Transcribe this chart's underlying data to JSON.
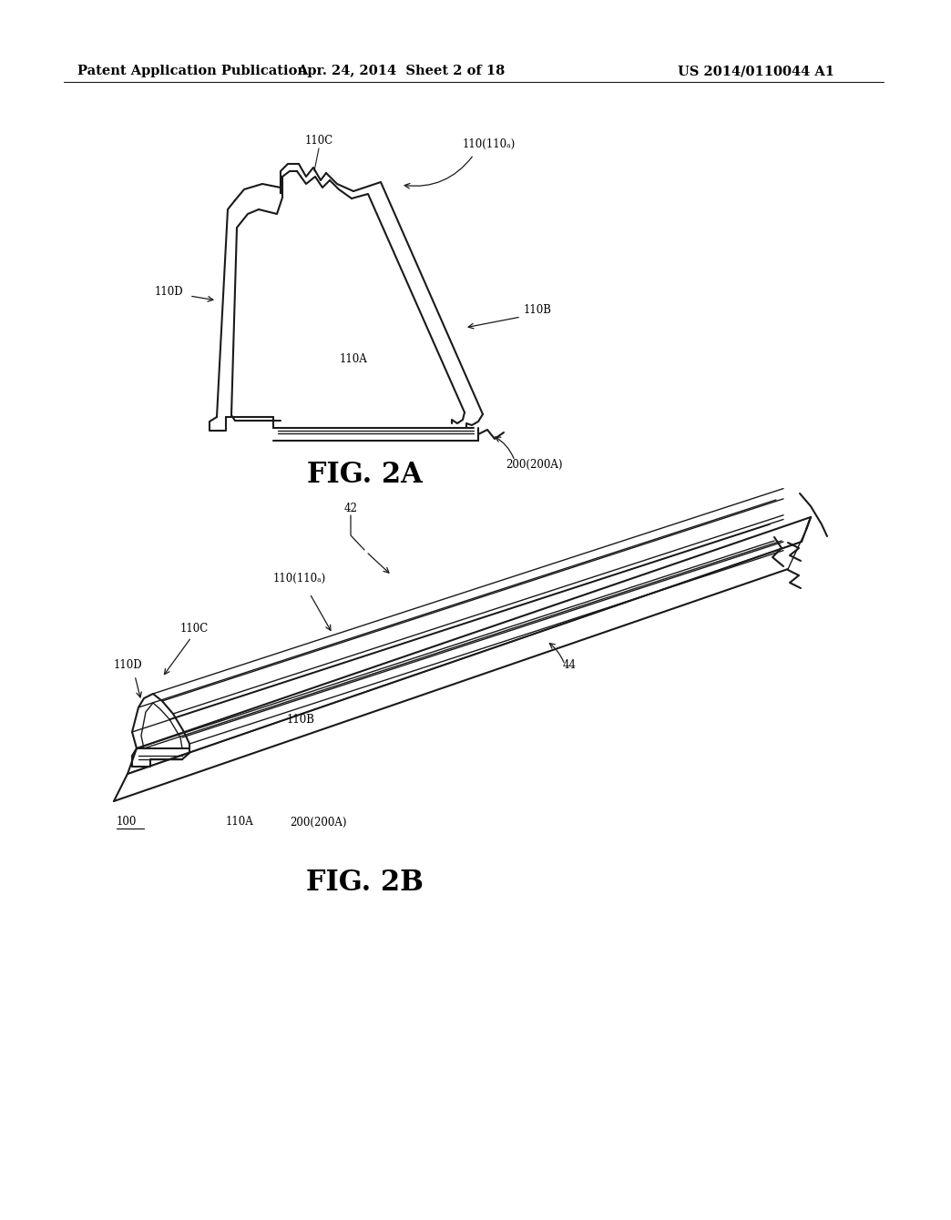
{
  "header_left": "Patent Application Publication",
  "header_mid": "Apr. 24, 2014  Sheet 2 of 18",
  "header_right": "US 2014/0110044 A1",
  "fig2a_label": "FIG. 2A",
  "fig2b_label": "FIG. 2B",
  "bg_color": "#ffffff",
  "line_color": "#1a1a1a",
  "header_fontsize": 10.5,
  "annotation_fontsize": 8.5
}
